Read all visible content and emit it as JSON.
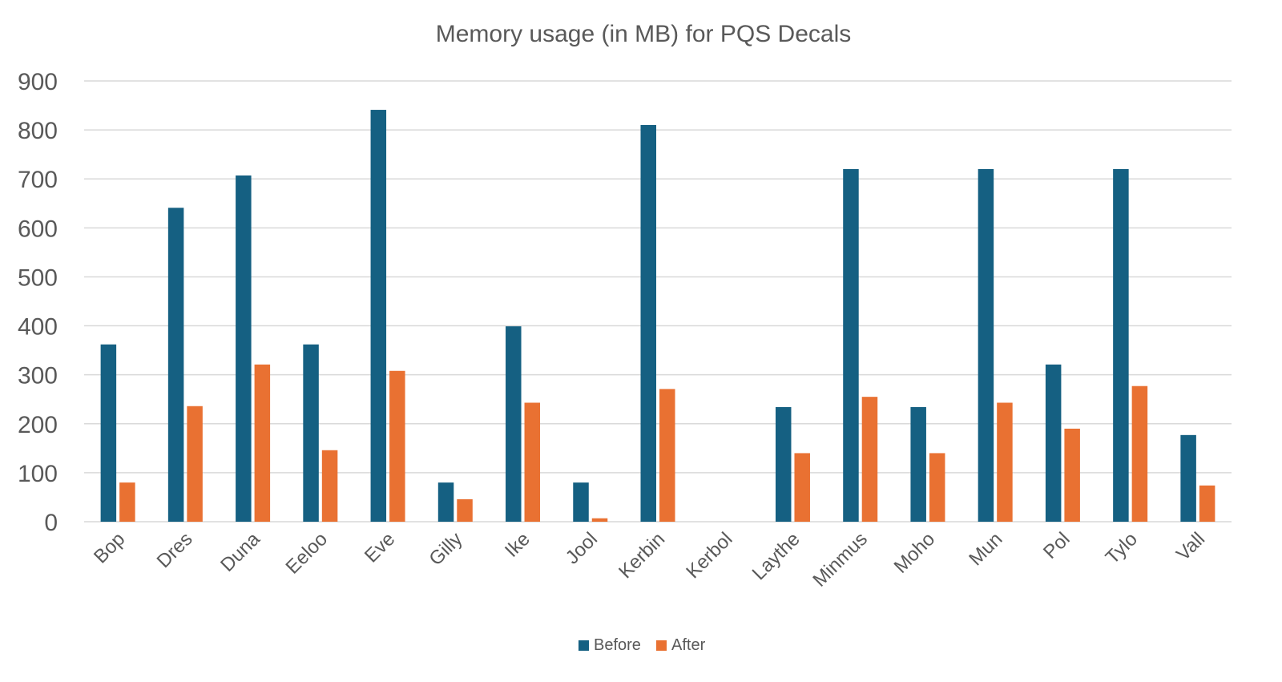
{
  "chart_data": {
    "type": "bar",
    "title": "Memory usage (in MB) for PQS Decals",
    "xlabel": "",
    "ylabel": "",
    "categories": [
      "Bop",
      "Dres",
      "Duna",
      "Eeloo",
      "Eve",
      "Gilly",
      "Ike",
      "Jool",
      "Kerbin",
      "Kerbol",
      "Laythe",
      "Minmus",
      "Moho",
      "Mun",
      "Pol",
      "Tylo",
      "Vall"
    ],
    "series": [
      {
        "name": "Before",
        "color": "#156082",
        "values": [
          362,
          641,
          707,
          362,
          841,
          80,
          399,
          80,
          810,
          0,
          234,
          720,
          234,
          720,
          321,
          720,
          177
        ]
      },
      {
        "name": "After",
        "color": "#e97132",
        "values": [
          80,
          236,
          321,
          146,
          308,
          46,
          243,
          7,
          271,
          0,
          140,
          255,
          140,
          243,
          190,
          277,
          74
        ]
      }
    ],
    "ylim": [
      0,
      900
    ],
    "yticks": [
      0,
      100,
      200,
      300,
      400,
      500,
      600,
      700,
      800,
      900
    ],
    "grid": true,
    "legend_position": "bottom",
    "colors": {
      "gridline": "#d9d9d9",
      "axis": "#d9d9d9",
      "text": "#595959"
    }
  }
}
